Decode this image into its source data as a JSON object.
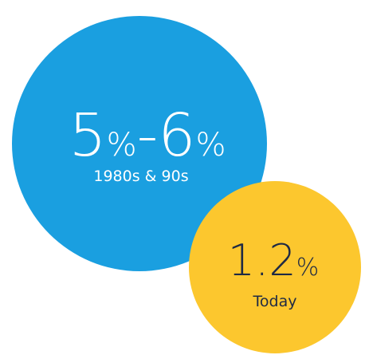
{
  "circles": [
    {
      "headline": [
        "5",
        "%",
        "-6",
        "%"
      ],
      "caption": "1980s & 90s"
    },
    {
      "headline": [
        "1.2",
        "%"
      ],
      "caption": "Today"
    }
  ]
}
